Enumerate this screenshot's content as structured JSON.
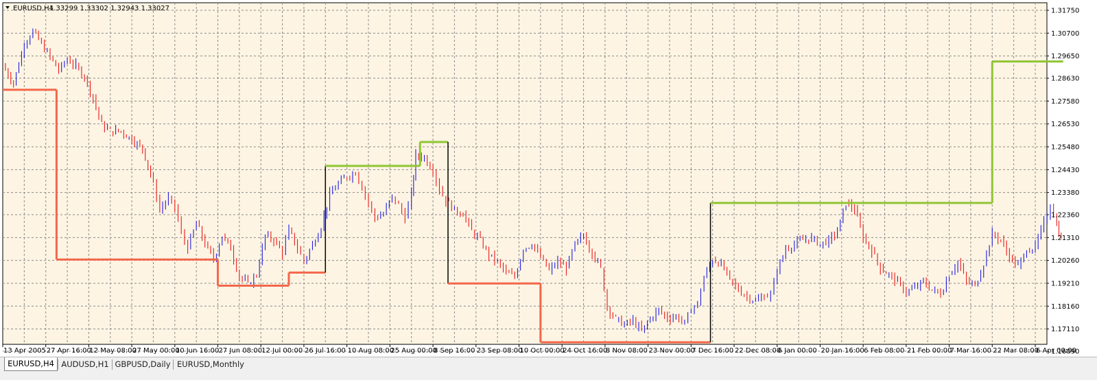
{
  "app": {
    "header": {
      "symbol": "EURUSD,H4",
      "quote": "1.33299 1.33302 1.32943 1.33027"
    },
    "colors": {
      "background": "#fdf4e3",
      "grid": "#8a8a8a",
      "bull_candle": "#1e1ee0",
      "bear_candle": "#e81a1a",
      "channel_down": "#f4664a",
      "channel_up": "#90c533",
      "channel_connector": "#000000"
    },
    "tabs": [
      {
        "label": "EURUSD,H4",
        "active": true
      },
      {
        "label": "AUDUSD,H1",
        "active": false
      },
      {
        "label": "GBPUSD,Daily",
        "active": false
      },
      {
        "label": "EURUSD,Monthly",
        "active": false
      }
    ]
  },
  "chart_data": {
    "type": "line",
    "instrument": "EURUSD",
    "timeframe": "H4",
    "ylim": [
      1.1609,
      1.3175
    ],
    "y_ticks": [
      "1.31750",
      "1.30700",
      "1.29650",
      "1.28630",
      "1.27580",
      "1.26530",
      "1.25480",
      "1.24430",
      "1.23380",
      "1.22360",
      "1.21310",
      "1.20260",
      "1.19210",
      "1.18160",
      "1.17110",
      "1.16090"
    ],
    "x_ticks": [
      "13 Apr 2005",
      "27 Apr 16:00",
      "12 May 08:00",
      "27 May 00:00",
      "10 Jun 16:00",
      "27 Jun 08:00",
      "12 Jul 00:00",
      "26 Jul 16:00",
      "10 Aug 08:00",
      "25 Aug 00:00",
      "8 Sep 16:00",
      "23 Sep 08:00",
      "10 Oct 00:00",
      "24 Oct 16:00",
      "8 Nov 08:00",
      "23 Nov 00:00",
      "7 Dec 16:00",
      "22 Dec 08:00",
      "6 Jan 00:00",
      "20 Jan 16:00",
      "6 Feb 08:00",
      "21 Feb 00:00",
      "7 Mar 16:00",
      "22 Mar 08:00",
      "6 Apr 00:00"
    ],
    "grid": true,
    "series": [
      {
        "points": [
          [
            0.0,
            1.292
          ],
          [
            0.5,
            1.284
          ],
          [
            1.0,
            1.302
          ],
          [
            1.4,
            1.308
          ],
          [
            1.8,
            1.302
          ],
          [
            2.2,
            1.296
          ],
          [
            2.6,
            1.29
          ],
          [
            3.0,
            1.295
          ],
          [
            3.4,
            1.292
          ],
          [
            3.8,
            1.287
          ],
          [
            4.2,
            1.277
          ],
          [
            4.6,
            1.265
          ],
          [
            5.0,
            1.262
          ],
          [
            5.5,
            1.262
          ],
          [
            6.0,
            1.258
          ],
          [
            6.5,
            1.254
          ],
          [
            7.0,
            1.238
          ],
          [
            7.3,
            1.226
          ],
          [
            7.7,
            1.231
          ],
          [
            8.0,
            1.227
          ],
          [
            8.3,
            1.215
          ],
          [
            8.6,
            1.208
          ],
          [
            9.0,
            1.22
          ],
          [
            9.4,
            1.21
          ],
          [
            9.8,
            1.203
          ],
          [
            10.2,
            1.214
          ],
          [
            10.6,
            1.208
          ],
          [
            11.0,
            1.195
          ],
          [
            11.4,
            1.192
          ],
          [
            11.8,
            1.196
          ],
          [
            12.2,
            1.214
          ],
          [
            12.6,
            1.212
          ],
          [
            13.0,
            1.206
          ],
          [
            13.3,
            1.217
          ],
          [
            13.7,
            1.208
          ],
          [
            14.0,
            1.202
          ],
          [
            14.4,
            1.21
          ],
          [
            14.8,
            1.218
          ],
          [
            15.2,
            1.233
          ],
          [
            15.6,
            1.238
          ],
          [
            16.0,
            1.241
          ],
          [
            16.4,
            1.243
          ],
          [
            16.7,
            1.236
          ],
          [
            17.0,
            1.229
          ],
          [
            17.3,
            1.222
          ],
          [
            17.7,
            1.224
          ],
          [
            18.1,
            1.232
          ],
          [
            18.4,
            1.228
          ],
          [
            18.7,
            1.222
          ],
          [
            19.0,
            1.233
          ],
          [
            19.2,
            1.251
          ],
          [
            19.6,
            1.25
          ],
          [
            20.0,
            1.244
          ],
          [
            20.3,
            1.235
          ],
          [
            20.6,
            1.23
          ],
          [
            21.0,
            1.226
          ],
          [
            21.4,
            1.224
          ],
          [
            21.8,
            1.216
          ],
          [
            22.2,
            1.212
          ],
          [
            22.6,
            1.205
          ],
          [
            23.0,
            1.202
          ],
          [
            23.4,
            1.197
          ],
          [
            23.8,
            1.195
          ],
          [
            24.2,
            1.208
          ],
          [
            24.6,
            1.21
          ],
          [
            25.0,
            1.204
          ],
          [
            25.4,
            1.198
          ],
          [
            25.8,
            1.202
          ],
          [
            26.2,
            1.199
          ],
          [
            26.6,
            1.21
          ],
          [
            27.0,
            1.214
          ],
          [
            27.4,
            1.206
          ],
          [
            27.8,
            1.199
          ],
          [
            28.1,
            1.181
          ],
          [
            28.5,
            1.176
          ],
          [
            28.9,
            1.173
          ],
          [
            29.3,
            1.175
          ],
          [
            29.7,
            1.17
          ],
          [
            30.1,
            1.176
          ],
          [
            30.5,
            1.18
          ],
          [
            30.9,
            1.176
          ],
          [
            31.3,
            1.177
          ],
          [
            31.7,
            1.174
          ],
          [
            32.0,
            1.18
          ],
          [
            32.3,
            1.183
          ],
          [
            32.6,
            1.195
          ],
          [
            33.0,
            1.203
          ],
          [
            33.4,
            1.201
          ],
          [
            33.8,
            1.194
          ],
          [
            34.2,
            1.189
          ],
          [
            34.6,
            1.186
          ],
          [
            35.0,
            1.184
          ],
          [
            35.4,
            1.186
          ],
          [
            35.7,
            1.187
          ],
          [
            36.0,
            1.198
          ],
          [
            36.4,
            1.208
          ],
          [
            36.8,
            1.21
          ],
          [
            37.2,
            1.212
          ],
          [
            37.6,
            1.213
          ],
          [
            38.0,
            1.21
          ],
          [
            38.4,
            1.212
          ],
          [
            38.8,
            1.216
          ],
          [
            39.2,
            1.229
          ],
          [
            39.6,
            1.226
          ],
          [
            40.0,
            1.213
          ],
          [
            40.4,
            1.207
          ],
          [
            40.8,
            1.199
          ],
          [
            41.2,
            1.196
          ],
          [
            41.6,
            1.193
          ],
          [
            42.0,
            1.188
          ],
          [
            42.4,
            1.19
          ],
          [
            42.8,
            1.193
          ],
          [
            43.2,
            1.189
          ],
          [
            43.6,
            1.187
          ],
          [
            44.0,
            1.196
          ],
          [
            44.4,
            1.202
          ],
          [
            44.8,
            1.193
          ],
          [
            45.2,
            1.191
          ],
          [
            45.6,
            1.201
          ],
          [
            46.0,
            1.215
          ],
          [
            46.4,
            1.212
          ],
          [
            46.8,
            1.204
          ],
          [
            47.2,
            1.2
          ],
          [
            47.6,
            1.207
          ],
          [
            48.0,
            1.209
          ],
          [
            48.4,
            1.22
          ],
          [
            48.7,
            1.228
          ],
          [
            49.0,
            1.219
          ],
          [
            49.2,
            1.212
          ]
        ]
      }
    ],
    "channel_segments": [
      {
        "trend": "down",
        "x_start": 0.0,
        "x_end": 1.0,
        "low": 1.281,
        "high": 1.311
      },
      {
        "trend": "down",
        "x_start": 1.0,
        "x_end": 2.5,
        "low": 1.281,
        "high": 1.311
      },
      {
        "trend": "down",
        "x_start": 2.5,
        "x_end": 9.2,
        "low": 1.203,
        "high": 1.311
      },
      {
        "trend": "down",
        "x_start": 9.2,
        "x_end": 10.0,
        "low": 1.203,
        "high": 1.227
      },
      {
        "trend": "down",
        "x_start": 10.0,
        "x_end": 12.3,
        "low": 1.191,
        "high": 1.227
      },
      {
        "trend": "down",
        "x_start": 12.3,
        "x_end": 13.3,
        "low": 1.191,
        "high": 1.225
      },
      {
        "trend": "down",
        "x_start": 13.3,
        "x_end": 15.0,
        "low": 1.197,
        "high": 1.225
      },
      {
        "trend": "up",
        "x_start": 15.0,
        "x_end": 17.5,
        "low": 1.197,
        "high": 1.246
      },
      {
        "trend": "up",
        "x_start": 17.5,
        "x_end": 19.4,
        "low": 1.215,
        "high": 1.246
      },
      {
        "trend": "up",
        "x_start": 19.4,
        "x_end": 20.7,
        "low": 1.215,
        "high": 1.257
      },
      {
        "trend": "down",
        "x_start": 20.7,
        "x_end": 24.2,
        "low": 1.192,
        "high": 1.257
      },
      {
        "trend": "down",
        "x_start": 24.2,
        "x_end": 25.0,
        "low": 1.192,
        "high": 1.218
      },
      {
        "trend": "down",
        "x_start": 25.0,
        "x_end": 32.9,
        "low": 1.165,
        "high": 1.218
      },
      {
        "trend": "up",
        "x_start": 32.9,
        "x_end": 40.5,
        "low": 1.165,
        "high": 1.229
      },
      {
        "trend": "up",
        "x_start": 40.5,
        "x_end": 46.0,
        "low": 1.185,
        "high": 1.229
      },
      {
        "trend": "up",
        "x_start": 46.0,
        "x_end": 49.3,
        "low": 1.185,
        "high": 1.294
      }
    ]
  }
}
